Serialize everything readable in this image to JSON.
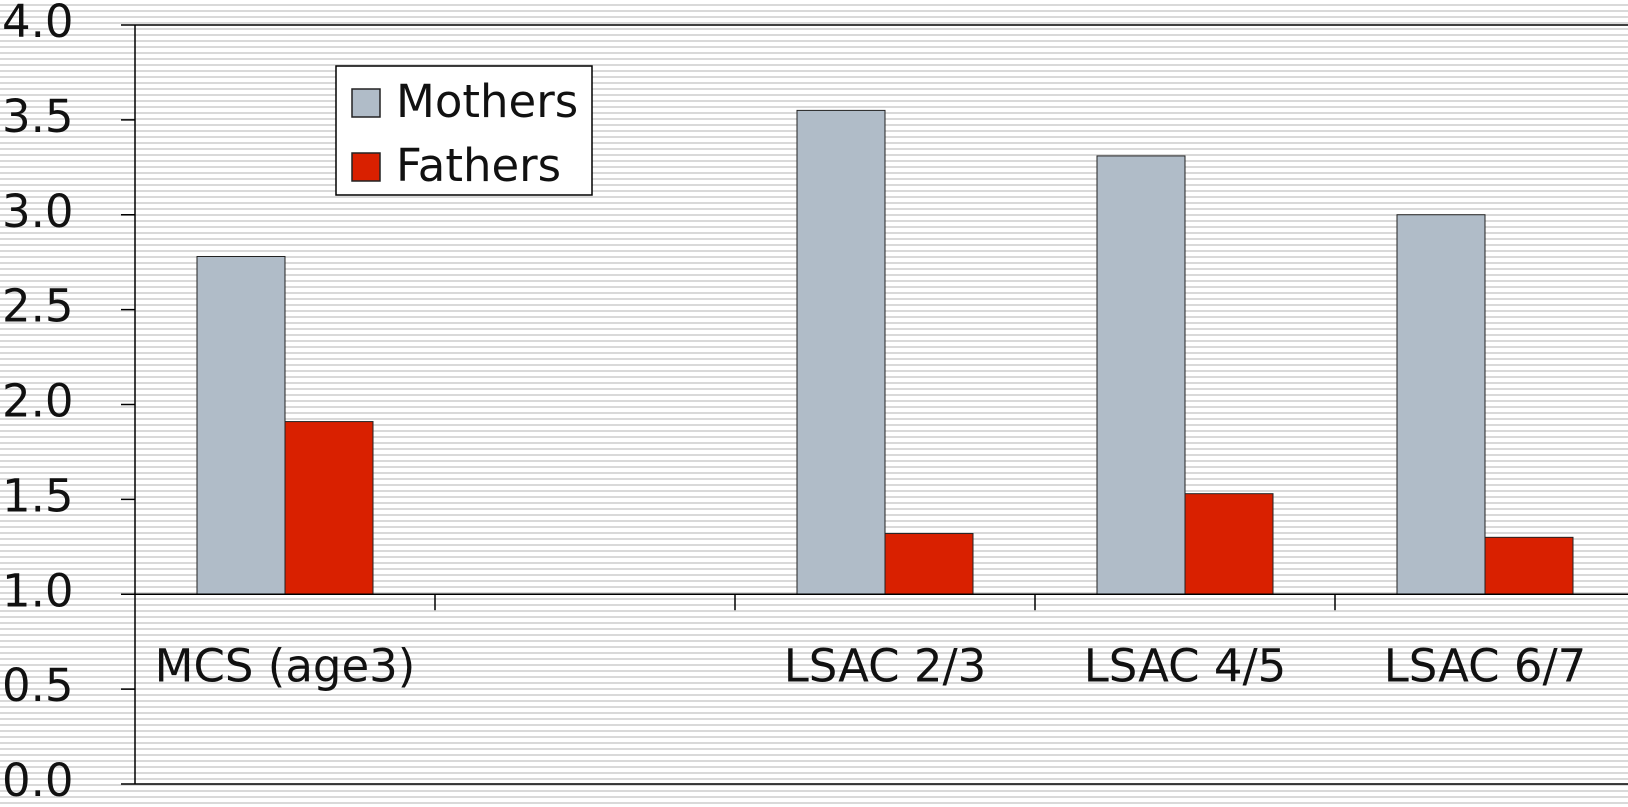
{
  "chart_data": {
    "type": "bar",
    "categories": [
      "MCS (age3)",
      null,
      "LSAC 2/3",
      "LSAC 4/5",
      "LSAC 6/7"
    ],
    "series": [
      {
        "name": "Mothers",
        "color": "#b0bcc8",
        "values": [
          2.78,
          null,
          3.55,
          3.31,
          3.0
        ]
      },
      {
        "name": "Fathers",
        "color": "#d92000",
        "values": [
          1.91,
          null,
          1.32,
          1.53,
          1.3
        ]
      }
    ],
    "ylim": [
      0,
      4
    ],
    "yticks": [
      {
        "value": 0,
        "label": "0.0"
      },
      0.5,
      {
        "value": 1,
        "label": "1.0"
      },
      1.5,
      {
        "value": 2,
        "label": "2.0"
      },
      2.5,
      {
        "value": 3,
        "label": "3.0"
      },
      3.5,
      {
        "value": 4,
        "label": "4.0"
      }
    ],
    "x_axis_at": 1,
    "legend": "upper left"
  }
}
